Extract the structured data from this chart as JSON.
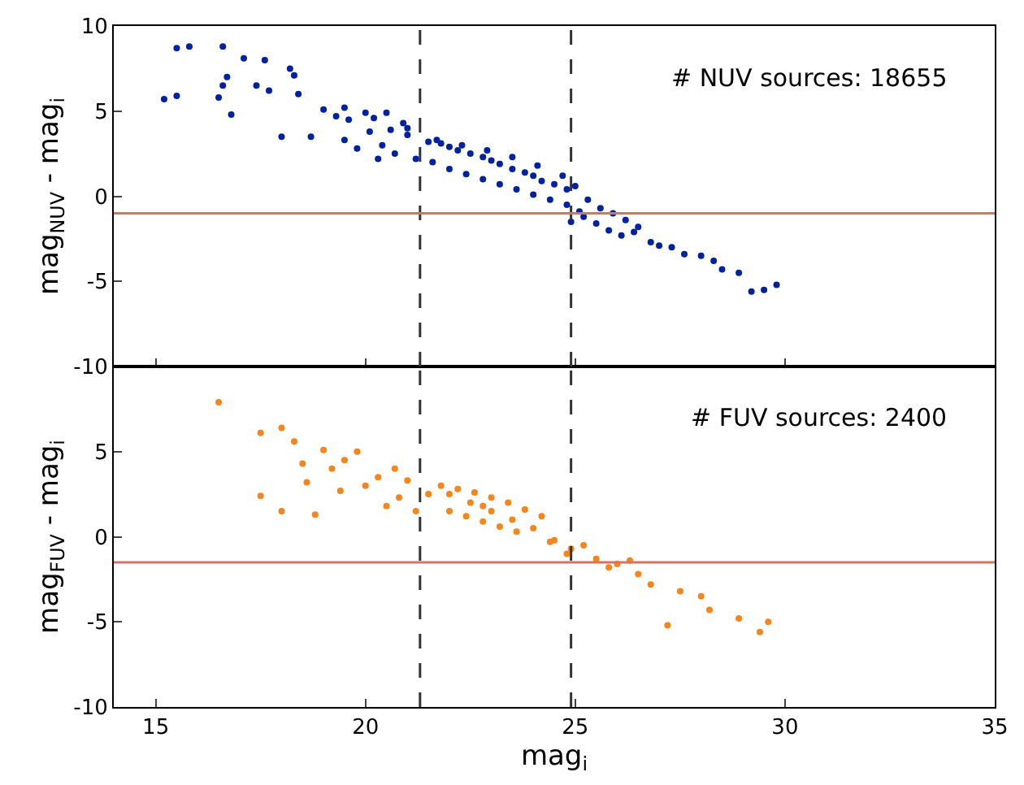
{
  "chart_data": [
    {
      "type": "scatter",
      "ylabel": "mag$_{NUV}$ - mag$_{i}$",
      "annotations": [
        "# NUV sources: 18655"
      ],
      "xlim": [
        14,
        35
      ],
      "xticks": [
        15,
        20,
        25,
        30,
        35
      ],
      "ylim": [
        -10,
        10
      ],
      "yticks": [
        -10,
        -5,
        0,
        5,
        10
      ],
      "tick_labels": "y",
      "grid": false,
      "marker": "circle",
      "series": [
        {
          "color": "#0022a0",
          "x": [
            15.2,
            15.5,
            15.5,
            15.8,
            16.6,
            17.1,
            17.6,
            18.2,
            18.3,
            16.7,
            16.6,
            17.4,
            16.5,
            17.7,
            18.4,
            16.8,
            18.0,
            18.7,
            19.0,
            19.3,
            19.5,
            20.0,
            20.5,
            19.6,
            20.2,
            20.9,
            21.0,
            19.5,
            19.8,
            20.1,
            20.4,
            20.7,
            21.0,
            21.2,
            20.3,
            20.6,
            21.5,
            21.8,
            22.0,
            22.2,
            22.5,
            22.8,
            23.0,
            23.2,
            23.5,
            23.8,
            24.0,
            24.2,
            24.5,
            24.8,
            21.6,
            22.0,
            22.4,
            22.8,
            23.2,
            23.6,
            24.0,
            24.4,
            24.8,
            21.7,
            22.3,
            22.9,
            23.5,
            24.1,
            24.7,
            25.0,
            25.3,
            25.6,
            25.9,
            26.2,
            26.5,
            25.2,
            25.5,
            25.8,
            26.1,
            26.4,
            26.8,
            27.0,
            27.3,
            27.6,
            28.0,
            28.3,
            28.5,
            28.9,
            29.2,
            29.5,
            29.8,
            24.9,
            25.1
          ],
          "values": [
            5.7,
            5.9,
            8.7,
            8.8,
            8.8,
            8.1,
            8.0,
            7.5,
            7.1,
            7.0,
            6.5,
            6.5,
            5.8,
            6.2,
            6.0,
            4.8,
            3.5,
            3.5,
            5.1,
            4.7,
            5.2,
            4.9,
            4.9,
            4.5,
            4.6,
            4.3,
            4.0,
            3.3,
            2.8,
            3.8,
            3.0,
            2.5,
            3.6,
            2.2,
            2.2,
            3.9,
            3.2,
            3.1,
            2.9,
            2.7,
            2.5,
            2.3,
            2.1,
            1.9,
            1.6,
            1.4,
            1.2,
            0.9,
            0.7,
            0.4,
            2.0,
            1.6,
            1.3,
            1.0,
            0.7,
            0.4,
            0.1,
            -0.2,
            -0.5,
            3.3,
            3.0,
            2.7,
            2.3,
            1.8,
            1.2,
            0.6,
            -0.2,
            -0.7,
            -1.0,
            -1.4,
            -1.8,
            -1.2,
            -1.6,
            -2.0,
            -2.3,
            -2.1,
            -2.7,
            -2.9,
            -3.0,
            -3.4,
            -3.5,
            -3.8,
            -4.3,
            -4.5,
            -5.6,
            -5.5,
            -5.2,
            -1.5,
            -0.9
          ]
        }
      ],
      "ref_lines": [
        {
          "axis": "x",
          "value": 21.3,
          "color": "#333333",
          "line_style": "dashed"
        },
        {
          "axis": "x",
          "value": 24.9,
          "color": "#333333",
          "line_style": "dashed"
        },
        {
          "axis": "y",
          "value": -1,
          "color": "#d9735f",
          "line_style": "solid"
        }
      ]
    },
    {
      "type": "scatter",
      "xlabel": "mag$_{i}$",
      "ylabel": "mag$_{FUV}$ - mag$_{i}$",
      "annotations": [
        "# FUV sources: 2400"
      ],
      "xlim": [
        14,
        35
      ],
      "xticks": [
        15,
        20,
        25,
        30,
        35
      ],
      "ylim": [
        -10,
        10
      ],
      "yticks": [
        -10,
        -5,
        0,
        5
      ],
      "grid": false,
      "marker": "circle",
      "series": [
        {
          "color": "#f5861e",
          "x": [
            16.5,
            17.5,
            18.0,
            17.5,
            18.0,
            18.3,
            18.5,
            18.8,
            19.0,
            19.2,
            19.5,
            19.8,
            20.0,
            20.3,
            20.7,
            21.0,
            20.8,
            21.5,
            22.0,
            22.5,
            22.8,
            23.0,
            23.5,
            24.0,
            24.5,
            24.9,
            25.5,
            26.0,
            26.5,
            26.8,
            27.2,
            27.5,
            28.0,
            28.2,
            28.9,
            29.4,
            29.6,
            21.8,
            22.2,
            22.6,
            23.0,
            23.4,
            23.8,
            24.2,
            22.0,
            22.4,
            22.8,
            23.2,
            23.6,
            24.4,
            24.8,
            25.2,
            25.8,
            26.3,
            21.2,
            19.4,
            20.5,
            18.6
          ],
          "values": [
            7.9,
            6.1,
            6.4,
            2.4,
            1.5,
            5.6,
            4.3,
            1.3,
            5.1,
            4.0,
            4.5,
            5.0,
            3.0,
            3.5,
            4.0,
            3.3,
            2.3,
            2.5,
            2.5,
            2.0,
            1.8,
            1.5,
            1.0,
            0.5,
            -0.2,
            -0.7,
            -1.3,
            -1.6,
            -2.2,
            -2.8,
            -5.2,
            -3.2,
            -3.5,
            -4.3,
            -4.8,
            -5.6,
            -5.0,
            3.0,
            2.8,
            2.6,
            2.3,
            2.0,
            1.6,
            1.2,
            1.5,
            1.2,
            0.9,
            0.6,
            0.3,
            -0.3,
            -1.0,
            -0.5,
            -1.8,
            -1.4,
            1.5,
            2.7,
            1.8,
            3.2
          ]
        }
      ],
      "ref_lines": [
        {
          "axis": "x",
          "value": 21.3,
          "color": "#333333",
          "line_style": "dashed"
        },
        {
          "axis": "x",
          "value": 24.9,
          "color": "#333333",
          "line_style": "dashed"
        },
        {
          "axis": "y",
          "value": -1.5,
          "color": "#d9735f",
          "line_style": "solid"
        }
      ]
    }
  ]
}
